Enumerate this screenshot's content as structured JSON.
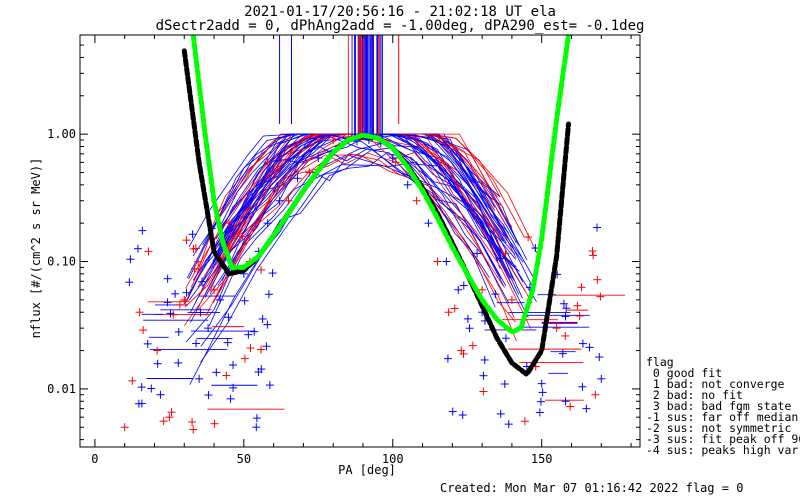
{
  "title_line1": "2021-01-17/20:56:16 - 21:02:18 UT ela",
  "title_line2": "dSectr2add = 0, dPhAng2add = -1.00deg, dPA290_est=  -0.1deg",
  "footer": "Created: Mon Mar 07 01:16:42 2022   flag = 0",
  "flag_legend": {
    "title": "flag",
    "items": [
      " 0 good fit",
      " 1 bad: not converge",
      " 2 bad: no fit",
      " 3 bad: bad fgm state",
      "-1 sus: far off median",
      "-2 sus: not symmetric",
      "-3 sus: fit peak off 90",
      "-4 sus: peaks high var"
    ]
  },
  "colors": {
    "blue_series": "#0000ff",
    "red_series": "#ff0000",
    "black_fit": "#000000",
    "green_fit": "#00ff00",
    "purple": "#800080"
  },
  "chart_data": {
    "type": "scatter",
    "xlabel": "PA [deg]",
    "ylabel": "nflux [#/(cm^2 s sr MeV)]",
    "xlim": [
      -5,
      183
    ],
    "ylim": [
      0.0035,
      6.0
    ],
    "yscale": "log",
    "x_ticks": [
      0,
      50,
      100,
      150
    ],
    "x_tick_labels": [
      "0",
      "50",
      "100",
      "150"
    ],
    "y_ticks": [
      0.01,
      0.1,
      1.0
    ],
    "y_tick_labels": [
      "0.01",
      "0.10",
      "1.00"
    ],
    "series": [
      {
        "color": "blue",
        "x": [
          22,
          28,
          35,
          38,
          42,
          50,
          55,
          58,
          62,
          68,
          75,
          82,
          88,
          92,
          96,
          100,
          105,
          112,
          118,
          122,
          130,
          138,
          145,
          150,
          158,
          165,
          170
        ],
        "y": [
          0.009,
          0.016,
          0.012,
          0.03,
          0.05,
          0.08,
          0.12,
          0.2,
          0.3,
          0.45,
          0.65,
          0.8,
          0.88,
          0.9,
          0.85,
          0.65,
          0.4,
          0.2,
          0.1,
          0.06,
          0.04,
          0.025,
          0.015,
          0.011,
          0.008,
          0.007,
          0.012
        ]
      },
      {
        "color": "red",
        "x": [
          10,
          15,
          18,
          25,
          30,
          33,
          40,
          45,
          52,
          58,
          65,
          72,
          80,
          86,
          95,
          101,
          108,
          115,
          123,
          130,
          140,
          148,
          155,
          162,
          168
        ],
        "y": [
          0.005,
          0.04,
          0.12,
          0.006,
          0.05,
          0.0048,
          0.06,
          0.2,
          0.1,
          0.6,
          0.3,
          0.5,
          0.9,
          0.93,
          0.95,
          0.6,
          0.3,
          0.1,
          0.02,
          0.06,
          0.05,
          0.015,
          0.03,
          0.045,
          0.009
        ]
      },
      {
        "name": "fit (black)",
        "color": "black",
        "x": [
          30,
          35,
          40,
          45,
          50,
          55,
          60,
          65,
          70,
          75,
          80,
          85,
          90,
          95,
          100,
          105,
          110,
          115,
          120,
          125,
          130,
          135,
          140,
          145,
          150,
          155,
          159
        ],
        "y": [
          4.5,
          0.6,
          0.12,
          0.08,
          0.085,
          0.11,
          0.16,
          0.24,
          0.36,
          0.52,
          0.72,
          0.9,
          0.97,
          0.93,
          0.78,
          0.56,
          0.38,
          0.24,
          0.14,
          0.08,
          0.045,
          0.025,
          0.016,
          0.013,
          0.02,
          0.11,
          1.2
        ]
      },
      {
        "name": "fit (green)",
        "color": "green",
        "x": [
          33,
          37,
          40,
          43,
          46,
          50,
          55,
          60,
          65,
          70,
          75,
          80,
          85,
          90,
          95,
          100,
          105,
          110,
          115,
          120,
          125,
          130,
          135,
          140,
          143,
          147,
          150,
          155,
          159
        ],
        "y": [
          6.0,
          1.0,
          0.3,
          0.14,
          0.09,
          0.09,
          0.11,
          0.16,
          0.24,
          0.36,
          0.52,
          0.72,
          0.9,
          0.98,
          0.93,
          0.78,
          0.55,
          0.36,
          0.22,
          0.13,
          0.08,
          0.05,
          0.035,
          0.028,
          0.03,
          0.06,
          0.15,
          1.3,
          6.0
        ]
      }
    ]
  }
}
